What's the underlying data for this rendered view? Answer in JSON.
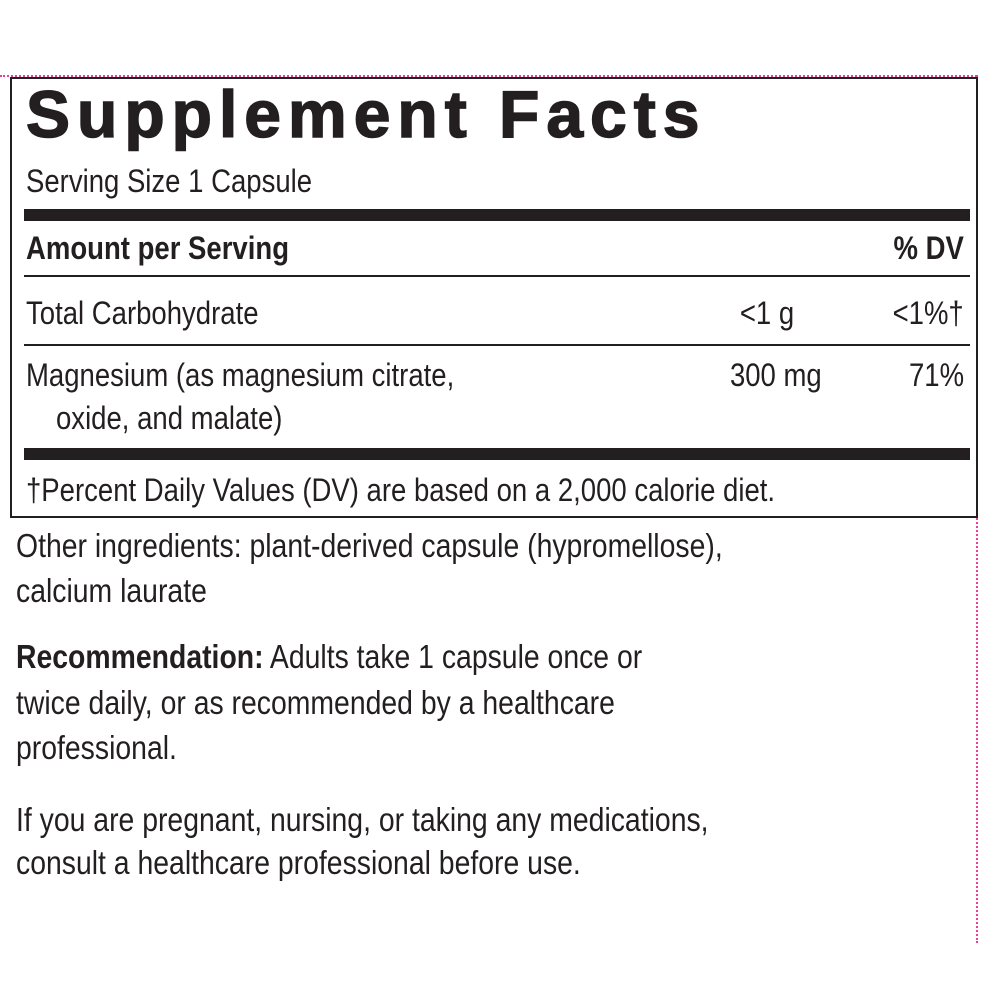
{
  "colors": {
    "text": "#231f20",
    "guide_lines": "#e8409a"
  },
  "panel": {
    "title": "Supplement Facts",
    "serving_size": "Serving Size 1 Capsule",
    "header": {
      "amount": "Amount per Serving",
      "dv": "% DV"
    },
    "rows": [
      {
        "name": "Total Carbohydrate",
        "amount": "<1 g",
        "dv": "<1%†"
      },
      {
        "name": "Magnesium (as magnesium citrate,",
        "name_cont": "oxide, and malate)",
        "amount": "300 mg",
        "dv": "71%"
      }
    ],
    "footnote": "†Percent Daily Values (DV) are based on a 2,000 calorie diet."
  },
  "other_ingredients": {
    "line1": "Other ingredients: plant-derived capsule (hypromellose),",
    "line2": "calcium laurate"
  },
  "recommendation": {
    "label": "Recommendation:",
    "line1": " Adults take 1 capsule once or",
    "line2": "twice daily, or as recommended by a healthcare",
    "line3": "professional."
  },
  "warning": {
    "line1": "If you are pregnant, nursing, or taking any medications,",
    "line2": "consult a healthcare professional before use."
  }
}
